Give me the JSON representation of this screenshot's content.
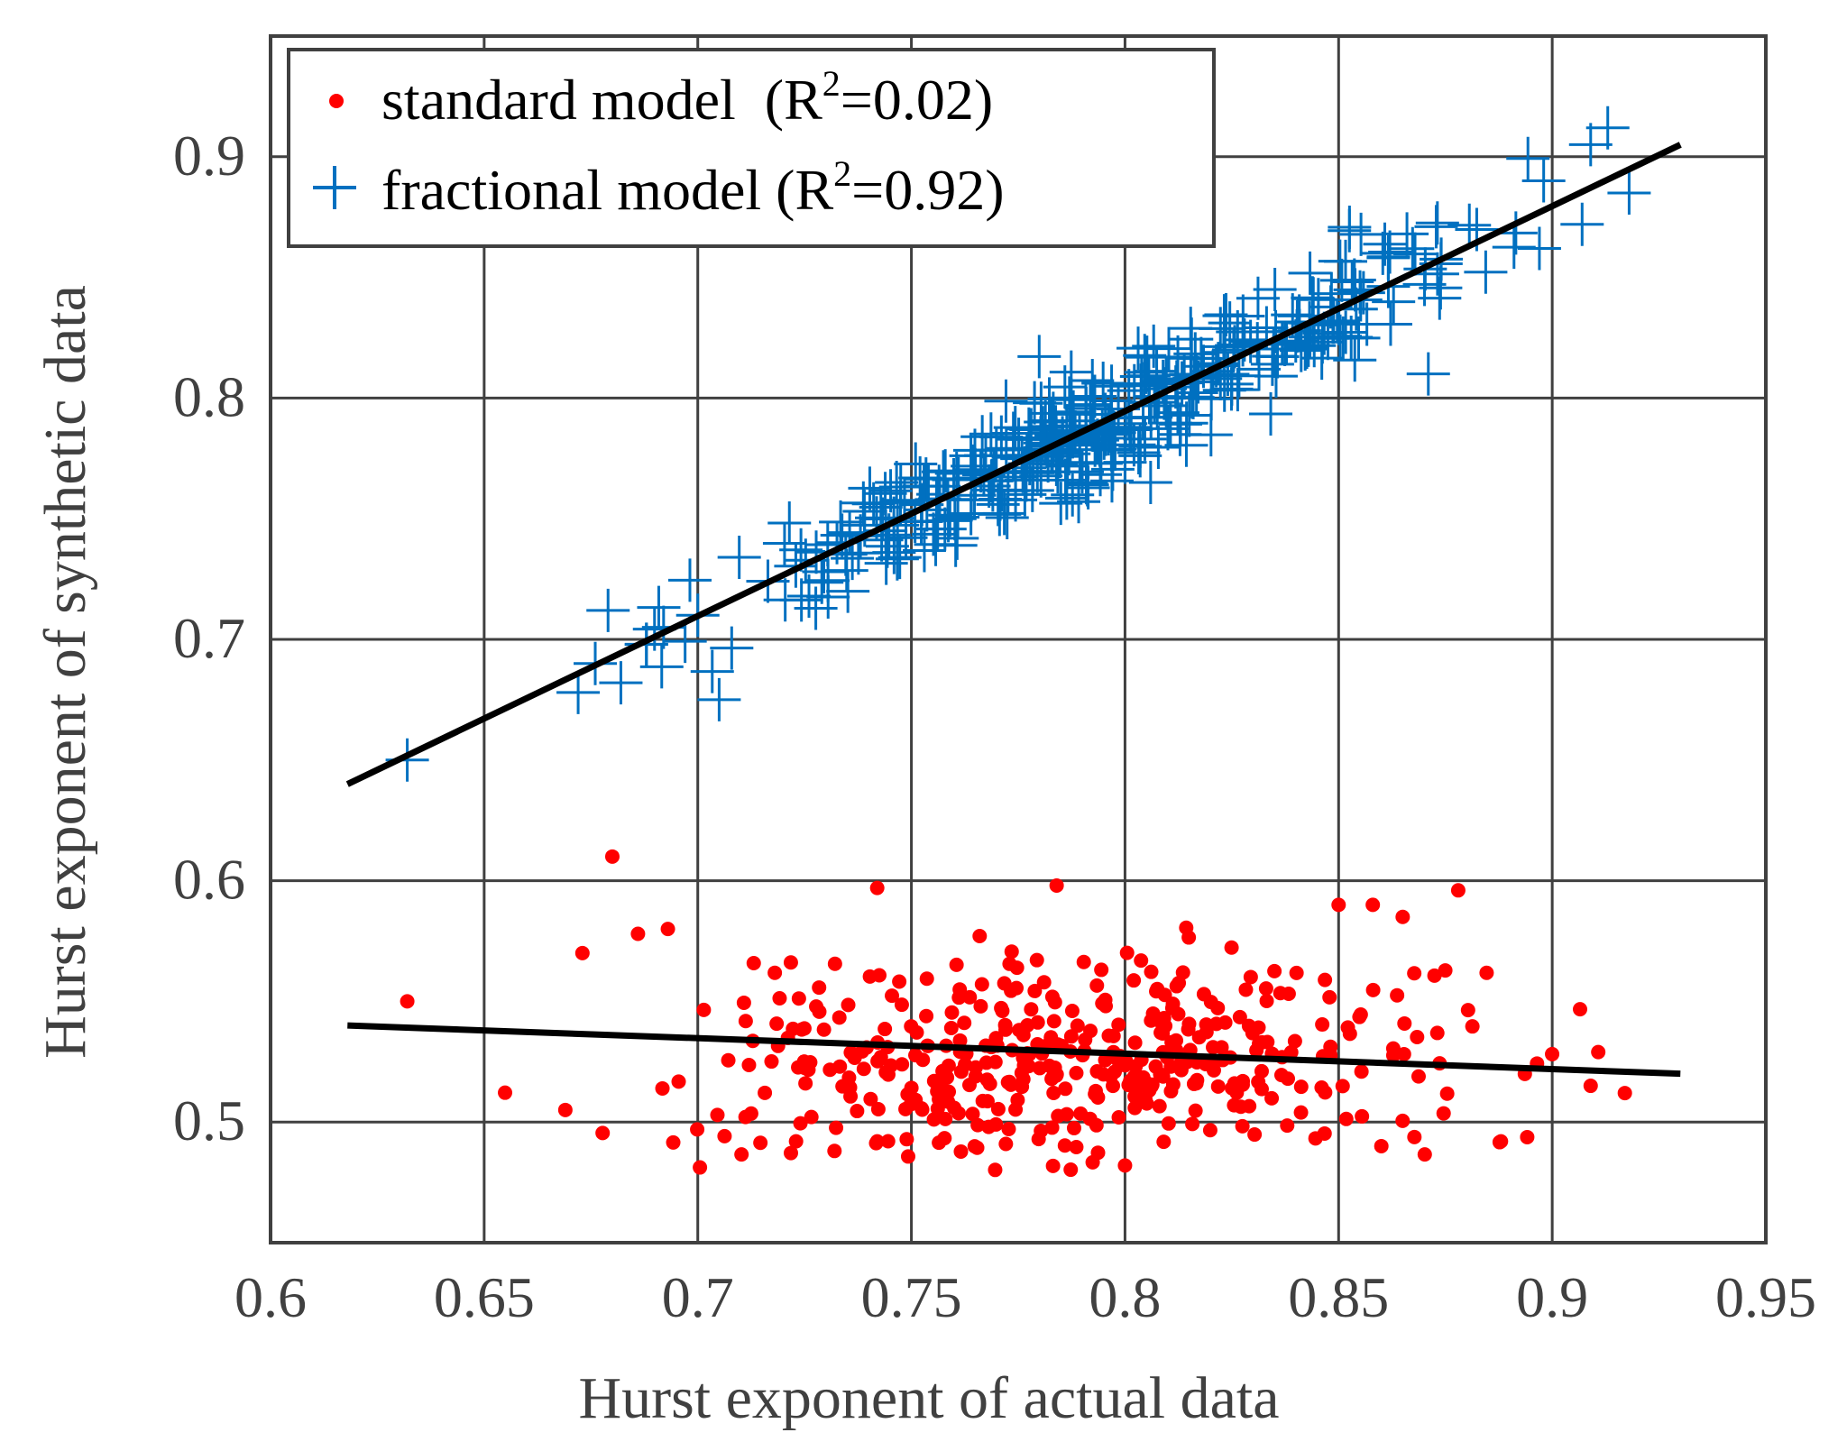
{
  "chart_data": {
    "type": "scatter",
    "xlabel": "Hurst exponent of actual data",
    "ylabel": "Hurst exponent of synthetic data",
    "xlim": [
      0.6,
      0.95
    ],
    "ylim": [
      0.45,
      0.95
    ],
    "xticks": [
      0.6,
      0.65,
      0.7,
      0.75,
      0.8,
      0.85,
      0.9,
      0.95
    ],
    "xtick_labels": [
      "0.6",
      "0.65",
      "0.7",
      "0.75",
      "0.8",
      "0.85",
      "0.9",
      "0.95"
    ],
    "yticks": [
      0.5,
      0.6,
      0.7,
      0.8,
      0.9
    ],
    "ytick_labels": [
      "0.5",
      "0.6",
      "0.7",
      "0.8",
      "0.9"
    ],
    "grid": true,
    "legend_position": "top-left",
    "legend": [
      {
        "text": "standard model  (R",
        "sup": "2",
        "tail": "=0.02)",
        "color": "#ff0000",
        "marker": "dot"
      },
      {
        "text": "fractional model (R",
        "sup": "2",
        "tail": "=0.92)",
        "color": "#0070c0",
        "marker": "plus"
      }
    ],
    "series": [
      {
        "name": "standard model",
        "marker": "dot",
        "color": "#ff0000",
        "fit": {
          "x": [
            0.618,
            0.93
          ],
          "y": [
            0.54,
            0.52
          ]
        },
        "random_cloud": {
          "n": 420,
          "x_mean": 0.79,
          "x_sd": 0.045,
          "y_mean": 0.525,
          "y_sd": 0.022,
          "x_range": [
            0.63,
            0.92
          ],
          "y_range": [
            0.48,
            0.6
          ],
          "seed": 7
        },
        "points": [
          [
            0.632,
            0.55
          ],
          [
            0.68,
            0.61
          ],
          [
            0.669,
            0.505
          ],
          [
            0.742,
            0.597
          ],
          [
            0.784,
            0.598
          ],
          [
            0.878,
            0.596
          ],
          [
            0.8,
            0.482
          ],
          [
            0.917,
            0.512
          ],
          [
            0.732,
            0.488
          ],
          [
            0.723,
            0.492
          ],
          [
            0.686,
            0.578
          ],
          [
            0.693,
            0.58
          ],
          [
            0.858,
            0.59
          ],
          [
            0.888,
            0.492
          ],
          [
            0.909,
            0.515
          ],
          [
            0.85,
            0.59
          ],
          [
            0.865,
            0.585
          ],
          [
            0.742,
            0.492
          ],
          [
            0.86,
            0.49
          ],
          [
            0.673,
            0.57
          ]
        ]
      },
      {
        "name": "fractional model",
        "marker": "plus",
        "color": "#0070c0",
        "fit": {
          "x": [
            0.618,
            0.93
          ],
          "y": [
            0.64,
            0.905
          ]
        },
        "random_cloud": {
          "n": 400,
          "x_min": 0.67,
          "x_max": 0.915,
          "slope": 0.849,
          "intercept": 0.115,
          "noise_sd": 0.012,
          "seed": 13
        },
        "points": [
          [
            0.632,
            0.65
          ],
          [
            0.672,
            0.678
          ],
          [
            0.676,
            0.69
          ],
          [
            0.679,
            0.712
          ],
          [
            0.682,
            0.682
          ],
          [
            0.688,
            0.698
          ],
          [
            0.692,
            0.705
          ],
          [
            0.7,
            0.71
          ],
          [
            0.705,
            0.675
          ],
          [
            0.871,
            0.81
          ],
          [
            0.898,
            0.89
          ],
          [
            0.909,
            0.905
          ],
          [
            0.913,
            0.912
          ],
          [
            0.918,
            0.885
          ],
          [
            0.907,
            0.872
          ],
          [
            0.897,
            0.862
          ],
          [
            0.866,
            0.868
          ],
          [
            0.806,
            0.765
          ],
          [
            0.787,
            0.8
          ],
          [
            0.744,
            0.745
          ]
        ]
      }
    ]
  }
}
